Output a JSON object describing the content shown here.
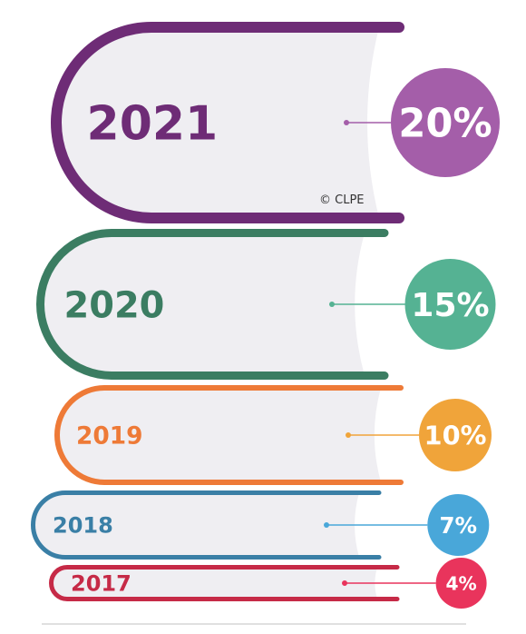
{
  "chart_data": {
    "type": "bar",
    "categories": [
      "2021",
      "2020",
      "2019",
      "2018",
      "2017"
    ],
    "values": [
      20,
      15,
      10,
      7,
      4
    ],
    "value_labels": [
      "20%",
      "15%",
      "10%",
      "7%",
      "4%"
    ],
    "colors": [
      "#6e2c76",
      "#3b7d62",
      "#ee7a37",
      "#3a7fa6",
      "#c62a47"
    ],
    "bubble_colors": [
      "#a45ea9",
      "#55b293",
      "#f0a43a",
      "#49a7d9",
      "#e9345c"
    ],
    "title": "",
    "xlabel": "",
    "ylabel": ""
  },
  "copyright": "© CLPE"
}
